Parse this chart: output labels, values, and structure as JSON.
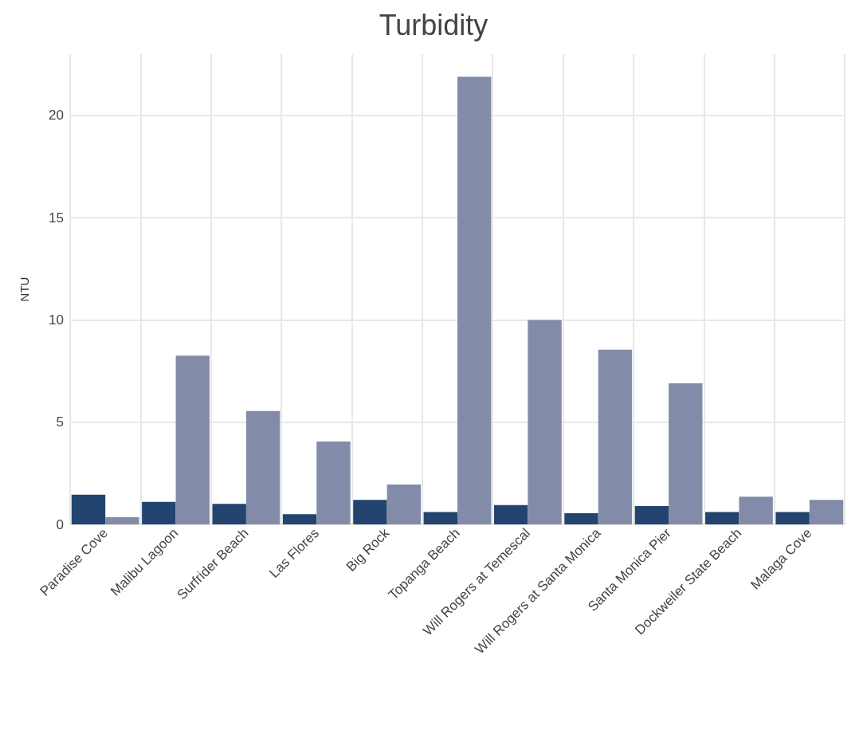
{
  "chart_data": {
    "type": "bar",
    "title": "Turbidity",
    "ylabel": "NTU",
    "categories": [
      "Paradise Cove",
      "Malibu Lagoon",
      "Surfrider Beach",
      "Las Flores",
      "Big Rock",
      "Topanga Beach",
      "Will Rogers at Temescal",
      "Will Rogers at Santa Monica",
      "Santa Monica Pier",
      "Dockweiler State Beach",
      "Malaga Cove"
    ],
    "series": [
      {
        "color": "#22446f",
        "values": [
          1.45,
          1.1,
          1.0,
          0.5,
          1.2,
          0.6,
          0.95,
          0.55,
          0.9,
          0.6,
          0.6
        ]
      },
      {
        "color": "#828ca8",
        "values": [
          0.35,
          8.25,
          5.55,
          4.05,
          1.95,
          21.9,
          10.0,
          8.55,
          6.9,
          1.35,
          1.2
        ]
      }
    ],
    "ylim": [
      0,
      23
    ],
    "yticks": [
      0,
      5,
      10,
      15,
      20
    ],
    "grid": true
  }
}
